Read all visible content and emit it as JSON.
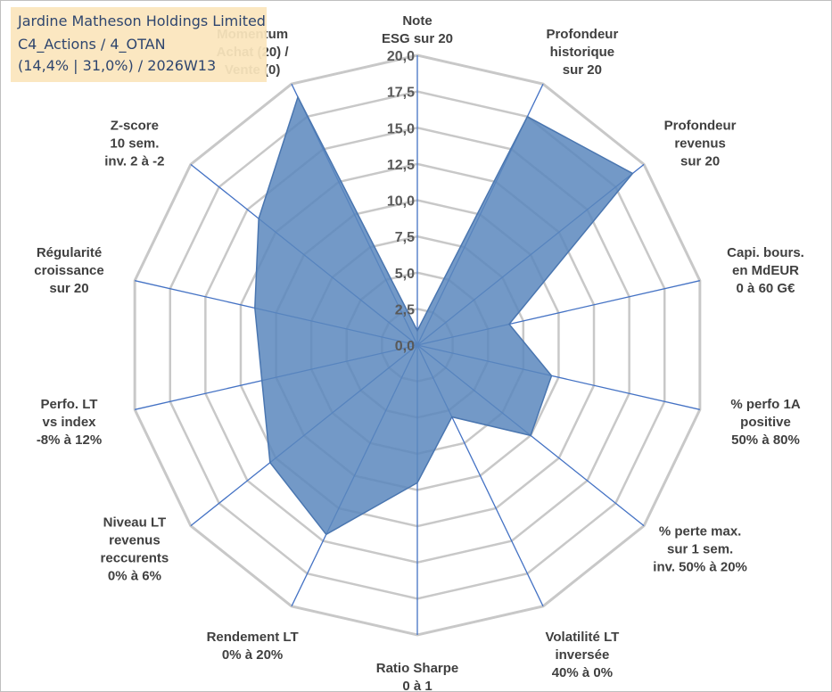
{
  "title": {
    "line1": "Jardine Matheson Holdings Limited",
    "line2": "C4_Actions / 4_OTAN",
    "line3": "(14,4% | 31,0%) / 2026W13"
  },
  "chart_data": {
    "type": "radar",
    "rmin": 0,
    "rmax": 20,
    "ticks": [
      "0,0",
      "2,5",
      "5,0",
      "7,5",
      "10,0",
      "12,5",
      "15,0",
      "17,5",
      "20,0"
    ],
    "axes": [
      [
        "Note",
        "ESG sur 20"
      ],
      [
        "Profondeur",
        "historique",
        "sur 20"
      ],
      [
        "Profondeur",
        "revenus",
        "sur 20"
      ],
      [
        "Capi. bours.",
        "en MdEUR",
        "0 à 60 G€"
      ],
      [
        "% perfo 1A",
        "positive",
        "50% à 80%"
      ],
      [
        "% perte max.",
        "sur 1 sem.",
        "inv. 50% à 20%"
      ],
      [
        "Volatilité LT",
        "inversée",
        "40% à 0%"
      ],
      [
        "Ratio Sharpe",
        "0 à 1"
      ],
      [
        "Rendement LT",
        "0% à 20%"
      ],
      [
        "Niveau LT",
        "revenus",
        "reccurents",
        "0% à 6%"
      ],
      [
        "Perfo. LT",
        "vs index",
        "-8% à 12%"
      ],
      [
        "Régularité",
        "croissance",
        "sur 20"
      ],
      [
        "Z-score",
        "10 sem.",
        "inv. 2 à -2"
      ],
      [
        "Momentum",
        "Achat (20) /",
        "Vente (0)"
      ]
    ],
    "series": [
      {
        "name": "Jardine Matheson Holdings Limited",
        "values": [
          1.0,
          17.5,
          19.0,
          6.5,
          9.5,
          10.0,
          5.5,
          9.5,
          14.5,
          13.0,
          11.0,
          11.5,
          14.0,
          19.0
        ],
        "color": "#5b87bd"
      }
    ],
    "colors": {
      "grid": "#c8c8c8",
      "spoke": "#4472c4",
      "fill": "#5b87bd"
    }
  }
}
